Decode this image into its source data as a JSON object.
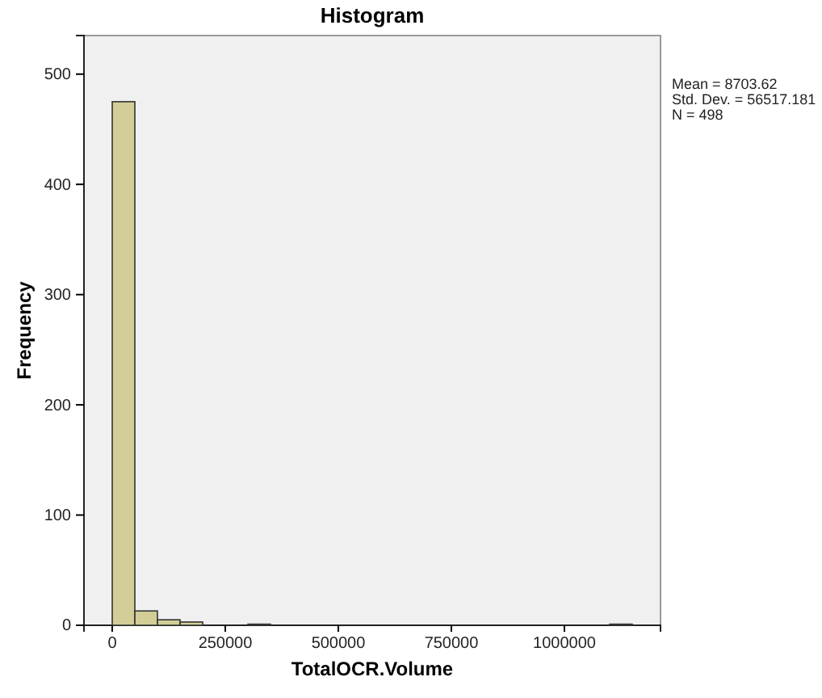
{
  "chart_data": {
    "type": "histogram",
    "title": "Histogram",
    "xlabel": "TotalOCR.Volume",
    "ylabel": "Frequency",
    "annotations": [
      "Mean = 8703.62",
      "Std. Dev. = 56517.181",
      "N = 498"
    ],
    "bins": [
      0,
      50000,
      100000,
      150000,
      200000,
      250000,
      300000,
      350000,
      400000,
      450000,
      500000,
      550000,
      600000,
      650000,
      700000,
      750000,
      800000,
      850000,
      900000,
      950000,
      1000000,
      1050000,
      1100000,
      1150000
    ],
    "values": [
      475,
      13,
      5,
      3,
      0,
      0,
      1,
      0,
      0,
      0,
      0,
      0,
      0,
      0,
      0,
      0,
      0,
      0,
      0,
      0,
      0,
      0,
      1
    ],
    "color": "#d3ce97",
    "xlim": [
      -62500,
      1212500
    ],
    "xticks": [
      0,
      250000,
      500000,
      750000,
      1000000
    ],
    "ylim": [
      0,
      535
    ],
    "yticks": [
      0,
      100,
      200,
      300,
      400,
      500
    ],
    "grid": false
  }
}
